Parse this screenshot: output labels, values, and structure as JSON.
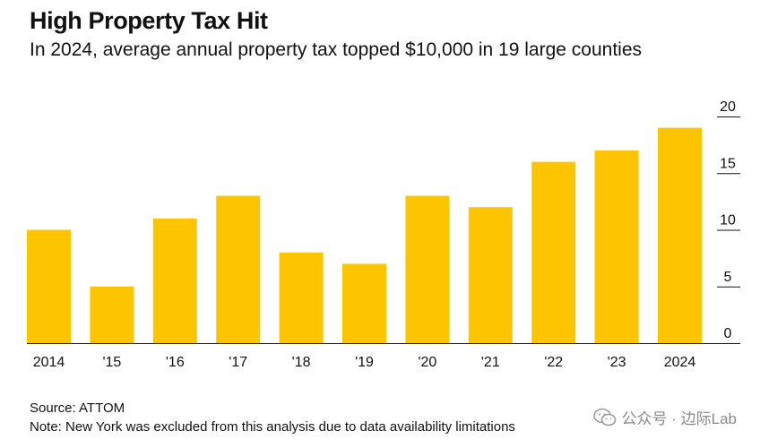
{
  "header": {
    "title": "High Property Tax Hit",
    "subtitle": "In 2024, average annual property tax topped $10,000 in 19 large counties"
  },
  "footer": {
    "source": "Source: ATTOM",
    "note": "Note: New York was excluded from this analysis due to data availability limitations"
  },
  "watermark": {
    "text": "公众号 · 边际Lab",
    "icon": "wechat-icon"
  },
  "colors": {
    "bar": "#FDC500",
    "axis": "#111111",
    "text": "#111111"
  },
  "chart_data": {
    "type": "bar",
    "title": "High Property Tax Hit",
    "subtitle": "In 2024, average annual property tax topped $10,000 in 19 large counties",
    "categories": [
      "2014",
      "'15",
      "'16",
      "'17",
      "'18",
      "'19",
      "'20",
      "'21",
      "'22",
      "'23",
      "2024"
    ],
    "values": [
      10,
      5,
      11,
      13,
      8,
      7,
      13,
      12,
      16,
      17,
      19
    ],
    "xlabel": "",
    "ylabel": "",
    "ylim": [
      0,
      20
    ],
    "yticks": [
      0,
      5,
      10,
      15,
      20
    ],
    "ytick_labels": [
      "0",
      "5",
      "10",
      "15",
      "20"
    ],
    "y_axis_side": "right",
    "grid": false,
    "legend": "none"
  }
}
